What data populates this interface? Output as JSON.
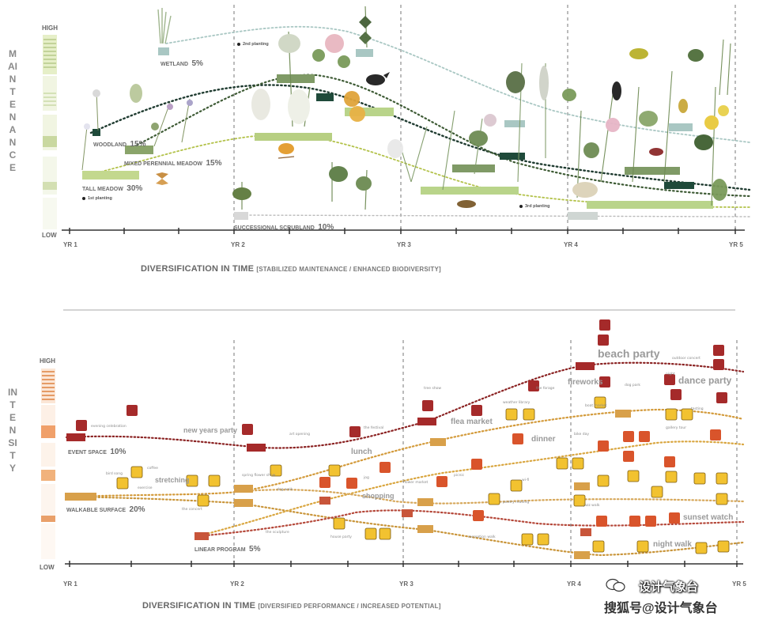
{
  "top_chart": {
    "vertical_label": "MAINTENANCE",
    "scale": {
      "high": "HIGH",
      "low": "LOW"
    },
    "years": [
      "YR 1",
      "YR 2",
      "YR 3",
      "YR 4",
      "YR 5"
    ],
    "title": "DIVERSIFICATION IN TIME",
    "subtitle": "[STABILIZED MAINTENANCE / ENHANCED BIODIVERSITY]",
    "categories": {
      "wetland": {
        "name": "WETLAND",
        "pct": "5%"
      },
      "woodland": {
        "name": "WOODLAND",
        "pct": "15%"
      },
      "mixed_meadow": {
        "name": "MIXED PERENNIAL MEADOW",
        "pct": "15%"
      },
      "tall_meadow": {
        "name": "TALL MEADOW",
        "pct": "30%"
      },
      "scrubland": {
        "name": "SUCCESSIONAL SCRUBLAND",
        "pct": "10%"
      }
    },
    "notes": {
      "first": "1st planting",
      "second": "2nd planting",
      "third": "3rd planting"
    }
  },
  "bottom_chart": {
    "vertical_label": "INTENSITY",
    "scale": {
      "high": "HIGH",
      "low": "LOW"
    },
    "years": [
      "YR 1",
      "YR 2",
      "YR 3",
      "YR 4",
      "YR 5"
    ],
    "title": "DIVERSIFICATION IN TIME",
    "subtitle": "[DIVERSIFIED PERFORMANCE / INCREASED POTENTIAL]",
    "categories": {
      "event": {
        "name": "EVENT SPACE",
        "pct": "10%"
      },
      "walkable": {
        "name": "WALKABLE SURFACE",
        "pct": "20%"
      },
      "linear": {
        "name": "LINEAR PROGRAM",
        "pct": "5%"
      }
    },
    "events": {
      "beach_party": "beach party",
      "fireworks": "fireworks",
      "dance_party": "dance party",
      "new_years": "new years party",
      "lunch": "lunch",
      "flea_market": "flea market",
      "dinner": "dinner",
      "sunset_watch": "sunset watch",
      "night_walk": "night walk",
      "stretching": "stretching",
      "shopping": "shopping"
    }
  },
  "watermark": {
    "line1": "设计气象台",
    "line2": "搜狐号@设计气象台"
  },
  "colors": {
    "event_line": "#8b2323",
    "walk_line": "#d39a3a",
    "linear_line": "#b5483a",
    "woodland": "#1f4a3a",
    "meadow": "#b7c97a",
    "tall": "#c3d88e",
    "wetland": "#a9c7c3",
    "scrub": "#d6d6d6"
  }
}
